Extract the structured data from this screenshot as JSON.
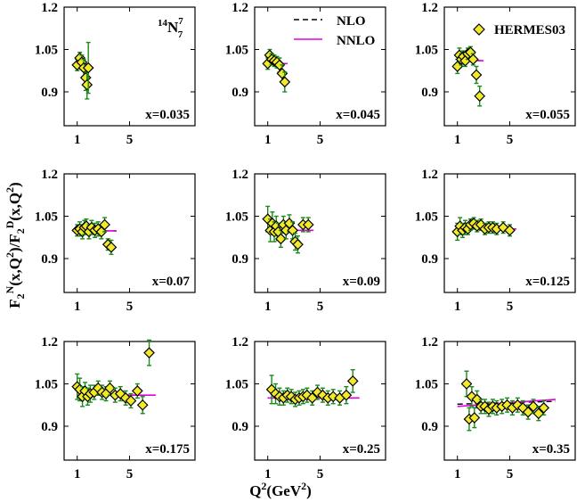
{
  "chart_data": {
    "type": "scatter",
    "ylabel_main": "F",
    "ylabel_full": "F2N(x,Q2)/F2D(x,Q2)",
    "xlabel_main": "Q",
    "xlabel_sup": "2",
    "xlabel_unit": "(GeV",
    "xlabel_unit_sup": "2",
    "xlabel_close": ")",
    "xlabel_full": "Q2(GeV2)",
    "nucleus_label": "N",
    "nucleus_mass": "14",
    "nucleus_Z": "7",
    "nucleus_N": "7",
    "legend": {
      "nlo": "NLO",
      "nnlo": "NNLO",
      "data": "HERMES03"
    },
    "xlim": [
      0,
      10
    ],
    "ylim": [
      0.78,
      1.2
    ],
    "xticks": [
      "1",
      "5"
    ],
    "xtick_values": [
      1,
      5
    ],
    "yticks": [
      "1.2",
      "1.05",
      "0.9"
    ],
    "ytick_values": [
      1.2,
      1.05,
      0.9
    ],
    "colors": {
      "marker_fill": "#f2e92a",
      "error_bar": "#1a8a1a",
      "nlo": "#000000",
      "nnlo": "#e000e0"
    },
    "panels": [
      {
        "label": "x=0.035",
        "nlo": [
          [
            1,
            1.0
          ],
          [
            1.9,
            0.998
          ]
        ],
        "nnlo": [
          [
            1,
            1.0
          ],
          [
            1.9,
            0.998
          ]
        ],
        "points": [
          [
            1.0,
            0.995,
            0.02
          ],
          [
            1.2,
            1.02,
            0.02
          ],
          [
            1.35,
            1.005,
            0.025
          ],
          [
            1.5,
            0.985,
            0.03
          ],
          [
            1.65,
            0.95,
            0.045
          ],
          [
            1.75,
            0.925,
            0.05
          ],
          [
            1.85,
            0.985,
            0.09
          ]
        ]
      },
      {
        "label": "x=0.045",
        "nlo": [
          [
            1,
            1.0
          ],
          [
            2.5,
            1.0
          ]
        ],
        "nnlo": [
          [
            1,
            1.0
          ],
          [
            2.5,
            1.0
          ]
        ],
        "points": [
          [
            1.0,
            1.0,
            0.02
          ],
          [
            1.15,
            1.03,
            0.02
          ],
          [
            1.3,
            1.015,
            0.02
          ],
          [
            1.5,
            1.01,
            0.02
          ],
          [
            1.7,
            1.005,
            0.02
          ],
          [
            1.9,
            0.995,
            0.025
          ],
          [
            2.1,
            0.965,
            0.03
          ],
          [
            2.3,
            0.935,
            0.035
          ]
        ]
      },
      {
        "label": "x=0.055",
        "nlo": [
          [
            1,
            1.015
          ],
          [
            3.0,
            1.01
          ]
        ],
        "nnlo": [
          [
            1,
            1.015
          ],
          [
            3.0,
            1.01
          ]
        ],
        "points": [
          [
            1.0,
            0.99,
            0.025
          ],
          [
            1.15,
            1.03,
            0.025
          ],
          [
            1.3,
            1.015,
            0.02
          ],
          [
            1.45,
            1.025,
            0.02
          ],
          [
            1.6,
            1.01,
            0.02
          ],
          [
            1.8,
            1.035,
            0.02
          ],
          [
            2.0,
            1.04,
            0.02
          ],
          [
            2.2,
            1.015,
            0.02
          ],
          [
            2.45,
            0.96,
            0.03
          ],
          [
            2.7,
            0.885,
            0.035
          ]
        ]
      },
      {
        "label": "x=0.07",
        "nlo": [
          [
            1,
            1.0
          ],
          [
            4.0,
            0.998
          ]
        ],
        "nnlo": [
          [
            1,
            1.0
          ],
          [
            4.0,
            0.998
          ]
        ],
        "points": [
          [
            1.0,
            1.0,
            0.02
          ],
          [
            1.2,
            1.005,
            0.025
          ],
          [
            1.4,
            0.995,
            0.025
          ],
          [
            1.55,
            1.01,
            0.025
          ],
          [
            1.7,
            1.015,
            0.025
          ],
          [
            1.9,
            0.995,
            0.025
          ],
          [
            2.1,
            1.01,
            0.025
          ],
          [
            2.35,
            1.0,
            0.025
          ],
          [
            2.6,
            1.005,
            0.025
          ],
          [
            2.85,
            0.995,
            0.025
          ],
          [
            3.1,
            1.02,
            0.025
          ],
          [
            3.35,
            0.95,
            0.02
          ],
          [
            3.6,
            0.94,
            0.025
          ]
        ]
      },
      {
        "label": "x=0.09",
        "nlo": [
          [
            1,
            1.0
          ],
          [
            4.5,
            1.0
          ]
        ],
        "nnlo": [
          [
            1,
            1.0
          ],
          [
            4.5,
            1.0
          ]
        ],
        "points": [
          [
            1.0,
            1.04,
            0.045
          ],
          [
            1.2,
            1.0,
            0.04
          ],
          [
            1.35,
            1.025,
            0.04
          ],
          [
            1.5,
            0.995,
            0.035
          ],
          [
            1.65,
            1.015,
            0.035
          ],
          [
            1.8,
            0.995,
            0.03
          ],
          [
            2.0,
            0.97,
            0.03
          ],
          [
            2.2,
            1.02,
            0.03
          ],
          [
            2.4,
            1.0,
            0.03
          ],
          [
            2.65,
            1.025,
            0.03
          ],
          [
            2.9,
            1.0,
            0.03
          ],
          [
            3.1,
            0.96,
            0.03
          ],
          [
            3.3,
            0.95,
            0.03
          ],
          [
            3.7,
            1.02,
            0.025
          ],
          [
            4.1,
            1.02,
            0.025
          ]
        ]
      },
      {
        "label": "x=0.125",
        "nlo": [
          [
            1,
            1.005
          ],
          [
            5.5,
            1.005
          ]
        ],
        "nnlo": [
          [
            1,
            1.005
          ],
          [
            5.5,
            1.005
          ]
        ],
        "points": [
          [
            1.0,
            0.995,
            0.03
          ],
          [
            1.2,
            1.015,
            0.03
          ],
          [
            1.4,
            1.0,
            0.025
          ],
          [
            1.6,
            1.01,
            0.025
          ],
          [
            1.8,
            1.005,
            0.02
          ],
          [
            2.0,
            1.02,
            0.02
          ],
          [
            2.25,
            1.025,
            0.02
          ],
          [
            2.5,
            1.015,
            0.02
          ],
          [
            2.8,
            1.02,
            0.02
          ],
          [
            3.1,
            1.005,
            0.02
          ],
          [
            3.4,
            1.01,
            0.02
          ],
          [
            3.7,
            1.01,
            0.02
          ],
          [
            4.0,
            1.005,
            0.02
          ],
          [
            4.5,
            1.01,
            0.02
          ],
          [
            5.0,
            1.0,
            0.02
          ]
        ]
      },
      {
        "label": "x=0.175",
        "nlo": [
          [
            1,
            1.01
          ],
          [
            7.0,
            1.01
          ]
        ],
        "nnlo": [
          [
            1,
            1.01
          ],
          [
            7.0,
            1.01
          ]
        ],
        "points": [
          [
            1.0,
            1.04,
            0.045
          ],
          [
            1.2,
            1.03,
            0.04
          ],
          [
            1.4,
            1.005,
            0.035
          ],
          [
            1.6,
            1.025,
            0.03
          ],
          [
            1.8,
            1.005,
            0.03
          ],
          [
            2.0,
            1.015,
            0.03
          ],
          [
            2.3,
            1.02,
            0.025
          ],
          [
            2.6,
            1.035,
            0.025
          ],
          [
            2.9,
            1.02,
            0.025
          ],
          [
            3.2,
            1.015,
            0.025
          ],
          [
            3.5,
            1.035,
            0.025
          ],
          [
            3.9,
            1.01,
            0.025
          ],
          [
            4.3,
            1.015,
            0.025
          ],
          [
            4.7,
            1.0,
            0.025
          ],
          [
            5.1,
            0.99,
            0.025
          ],
          [
            5.6,
            1.025,
            0.025
          ],
          [
            6.0,
            0.975,
            0.03
          ],
          [
            6.5,
            1.16,
            0.045
          ]
        ]
      },
      {
        "label": "x=0.25",
        "nlo": [
          [
            1,
            1.0
          ],
          [
            8.0,
            1.0
          ]
        ],
        "nnlo": [
          [
            1,
            1.0
          ],
          [
            8.0,
            1.0
          ]
        ],
        "points": [
          [
            1.3,
            1.03,
            0.05
          ],
          [
            1.6,
            1.015,
            0.035
          ],
          [
            1.9,
            1.005,
            0.03
          ],
          [
            2.2,
            1.0,
            0.025
          ],
          [
            2.5,
            1.01,
            0.025
          ],
          [
            2.8,
            1.005,
            0.025
          ],
          [
            3.1,
            0.995,
            0.025
          ],
          [
            3.4,
            1.0,
            0.025
          ],
          [
            3.7,
            1.005,
            0.025
          ],
          [
            4.0,
            1.01,
            0.025
          ],
          [
            4.4,
            1.0,
            0.025
          ],
          [
            4.8,
            1.02,
            0.025
          ],
          [
            5.2,
            1.01,
            0.025
          ],
          [
            5.6,
            1.0,
            0.025
          ],
          [
            6.0,
            1.005,
            0.025
          ],
          [
            6.5,
            1.0,
            0.025
          ],
          [
            7.0,
            1.01,
            0.03
          ],
          [
            7.5,
            1.06,
            0.04
          ]
        ]
      },
      {
        "label": "x=0.35",
        "nlo": [
          [
            1,
            0.978
          ],
          [
            8.5,
            0.988
          ]
        ],
        "nnlo": [
          [
            1,
            0.97
          ],
          [
            8.5,
            0.995
          ]
        ],
        "points": [
          [
            1.7,
            1.05,
            0.045
          ],
          [
            1.9,
            0.925,
            0.04
          ],
          [
            2.1,
            1.005,
            0.035
          ],
          [
            2.3,
            0.93,
            0.035
          ],
          [
            2.5,
            0.995,
            0.03
          ],
          [
            2.8,
            0.97,
            0.025
          ],
          [
            3.1,
            0.97,
            0.025
          ],
          [
            3.4,
            0.96,
            0.025
          ],
          [
            3.7,
            0.97,
            0.025
          ],
          [
            4.0,
            0.965,
            0.025
          ],
          [
            4.4,
            0.97,
            0.025
          ],
          [
            4.8,
            0.975,
            0.025
          ],
          [
            5.2,
            0.965,
            0.025
          ],
          [
            5.6,
            0.975,
            0.025
          ],
          [
            6.0,
            0.965,
            0.025
          ],
          [
            6.4,
            0.95,
            0.025
          ],
          [
            6.8,
            0.97,
            0.025
          ],
          [
            7.2,
            0.945,
            0.025
          ],
          [
            7.6,
            0.965,
            0.025
          ]
        ]
      }
    ]
  }
}
